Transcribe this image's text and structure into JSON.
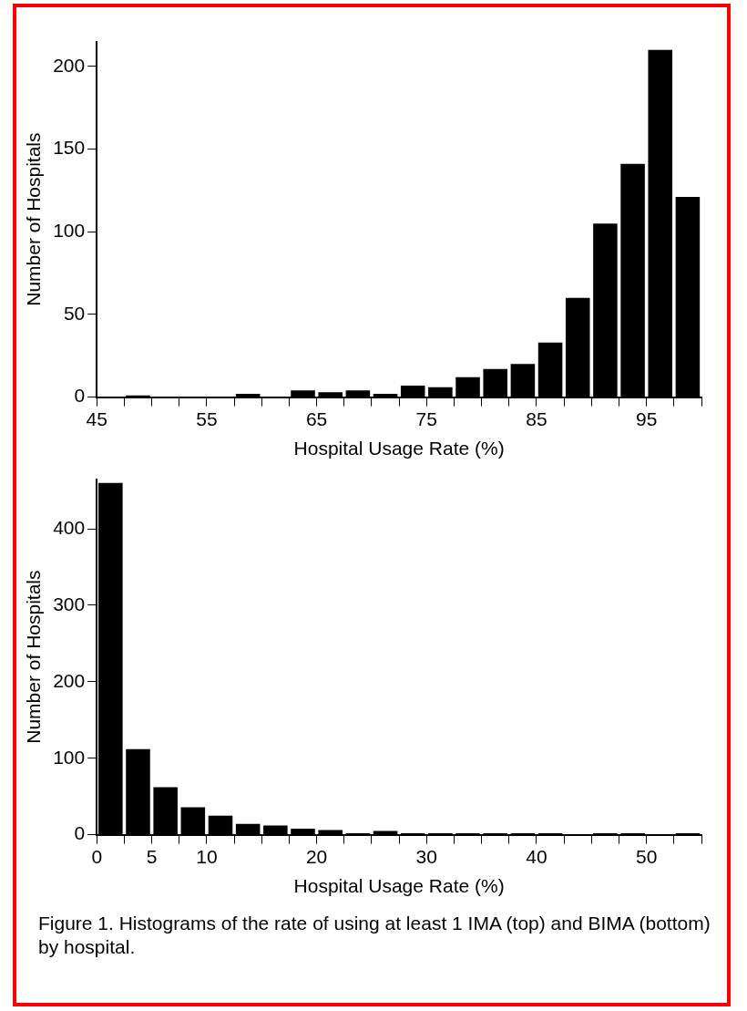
{
  "chart_data": [
    {
      "type": "histogram",
      "xlabel": "Hospital Usage Rate (%)",
      "ylabel": "Number of Hospitals",
      "color": "#000000",
      "bins": [
        45,
        47.5,
        50,
        52.5,
        55,
        57.5,
        60,
        62.5,
        65,
        67.5,
        70,
        72.5,
        75,
        77.5,
        80,
        82.5,
        85,
        87.5,
        90,
        92.5,
        95,
        97.5,
        100
      ],
      "values": [
        0,
        1,
        0,
        0,
        0,
        2,
        0,
        4,
        3,
        4,
        2,
        7,
        6,
        12,
        17,
        20,
        33,
        60,
        105,
        141,
        210,
        121
      ],
      "xlim": [
        45,
        100
      ],
      "xticks": [
        45,
        {
          "value": 47.5,
          "label": null
        },
        {
          "value": 50,
          "label": null
        },
        {
          "value": 52.5,
          "label": null
        },
        55,
        {
          "value": 57.5,
          "label": null
        },
        {
          "value": 60,
          "label": null
        },
        {
          "value": 62.5,
          "label": null
        },
        65,
        {
          "value": 67.5,
          "label": null
        },
        {
          "value": 70,
          "label": null
        },
        {
          "value": 72.5,
          "label": null
        },
        75,
        {
          "value": 77.5,
          "label": null
        },
        {
          "value": 80,
          "label": null
        },
        {
          "value": 82.5,
          "label": null
        },
        85,
        {
          "value": 87.5,
          "label": null
        },
        {
          "value": 90,
          "label": null
        },
        {
          "value": 92.5,
          "label": null
        },
        95,
        {
          "value": 97.5,
          "label": null
        },
        {
          "value": 100,
          "label": null
        }
      ],
      "ylim": [
        0,
        215
      ],
      "yticks": [
        0,
        50,
        100,
        150,
        200
      ],
      "grid": false,
      "legend": false
    },
    {
      "type": "histogram",
      "xlabel": "Hospital Usage Rate (%)",
      "ylabel": "Number of Hospitals",
      "color": "#000000",
      "bins": [
        0,
        2.5,
        5,
        7.5,
        10,
        12.5,
        15,
        17.5,
        20,
        22.5,
        25,
        27.5,
        30,
        32.5,
        35,
        37.5,
        40,
        42.5,
        45,
        47.5,
        50,
        52.5,
        55
      ],
      "values": [
        460,
        112,
        62,
        36,
        25,
        14,
        12,
        8,
        6,
        2,
        5,
        2,
        2,
        2,
        2,
        2,
        2,
        0,
        2,
        2,
        0,
        2
      ],
      "xlim": [
        0,
        55
      ],
      "xticks": [
        0,
        {
          "value": 2.5,
          "label": null
        },
        5,
        {
          "value": 7.5,
          "label": null
        },
        10,
        {
          "value": 12.5,
          "label": null
        },
        {
          "value": 15,
          "label": null
        },
        {
          "value": 17.5,
          "label": null
        },
        20,
        {
          "value": 22.5,
          "label": null
        },
        {
          "value": 25,
          "label": null
        },
        {
          "value": 27.5,
          "label": null
        },
        30,
        {
          "value": 32.5,
          "label": null
        },
        {
          "value": 35,
          "label": null
        },
        {
          "value": 37.5,
          "label": null
        },
        40,
        {
          "value": 42.5,
          "label": null
        },
        {
          "value": 45,
          "label": null
        },
        {
          "value": 47.5,
          "label": null
        },
        50,
        {
          "value": 52.5,
          "label": null
        },
        {
          "value": 55,
          "label": null
        }
      ],
      "ylim": [
        0,
        465
      ],
      "yticks": [
        0,
        100,
        200,
        300,
        400
      ],
      "grid": false,
      "legend": false,
      "annotations": [
        "Figure 1. Histograms of the rate of using at least 1 IMA (top) and BIMA (bottom) by hospital."
      ]
    }
  ]
}
